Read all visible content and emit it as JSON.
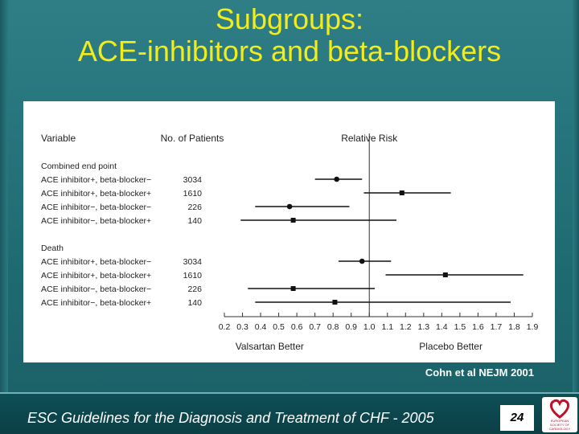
{
  "slide": {
    "title_line1": "Subgroups:",
    "title_line2": "ACE-inhibitors and beta-blockers",
    "citation": "Cohn et al NEJM 2001",
    "footer": "ESC Guidelines for the Diagnosis and Treatment of CHF - 2005",
    "page_number": "24",
    "logo_text": "EUROPEAN SOCIETY OF CARDIOLOGY",
    "colors": {
      "title": "#f2ec1a",
      "background": "#1f6b72",
      "footer": "#0b3f45"
    }
  },
  "chart_data": {
    "type": "forest",
    "headers": {
      "variable": "Variable",
      "patients": "No. of Patients",
      "risk": "Relative Risk"
    },
    "xlim": [
      0.2,
      1.9
    ],
    "reference_line": 1.0,
    "xticks": [
      "0.2",
      "0.3",
      "0.4",
      "0.5",
      "0.6",
      "0.7",
      "0.8",
      "0.9",
      "1.0",
      "1.1",
      "1.2",
      "1.3",
      "1.4",
      "1.5",
      "1.6",
      "1.7",
      "1.8",
      "1.9"
    ],
    "x_left_label": "Valsartan Better",
    "x_right_label": "Placebo Better",
    "groups": [
      {
        "name": "Combined end point",
        "rows": [
          {
            "label": "ACE inhibitor+, beta-blocker−",
            "n": "3034",
            "est": 0.82,
            "lo": 0.7,
            "hi": 0.96,
            "marker": "circle"
          },
          {
            "label": "ACE inhibitor+, beta-blocker+",
            "n": "1610",
            "est": 1.18,
            "lo": 0.97,
            "hi": 1.45,
            "marker": "square"
          },
          {
            "label": "ACE inhibitor−, beta-blocker−",
            "n": "226",
            "est": 0.56,
            "lo": 0.37,
            "hi": 0.89,
            "marker": "circle"
          },
          {
            "label": "ACE inhibitor−, beta-blocker+",
            "n": "140",
            "est": 0.58,
            "lo": 0.29,
            "hi": 1.15,
            "marker": "square"
          }
        ]
      },
      {
        "name": "Death",
        "rows": [
          {
            "label": "ACE inhibitor+, beta-blocker−",
            "n": "3034",
            "est": 0.96,
            "lo": 0.83,
            "hi": 1.12,
            "marker": "circle"
          },
          {
            "label": "ACE inhibitor+, beta-blocker+",
            "n": "1610",
            "est": 1.42,
            "lo": 1.09,
            "hi": 1.85,
            "marker": "square"
          },
          {
            "label": "ACE inhibitor−, beta-blocker−",
            "n": "226",
            "est": 0.58,
            "lo": 0.33,
            "hi": 1.03,
            "marker": "square"
          },
          {
            "label": "ACE inhibitor−, beta-blocker+",
            "n": "140",
            "est": 0.81,
            "lo": 0.37,
            "hi": 1.78,
            "marker": "square"
          }
        ]
      }
    ]
  }
}
